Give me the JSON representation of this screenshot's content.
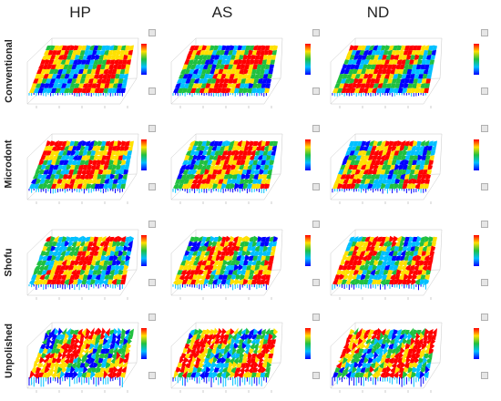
{
  "columns": [
    "HP",
    "AS",
    "ND"
  ],
  "rows": [
    "Conventional",
    "Microdont",
    "Shofu",
    "Unpolished"
  ],
  "colors": {
    "low": "#0000ff",
    "mid_low": "#00c0ff",
    "mid": "#20c040",
    "mid_high": "#ffe000",
    "high": "#ff0000",
    "grid": "#c8c8c8"
  }
}
